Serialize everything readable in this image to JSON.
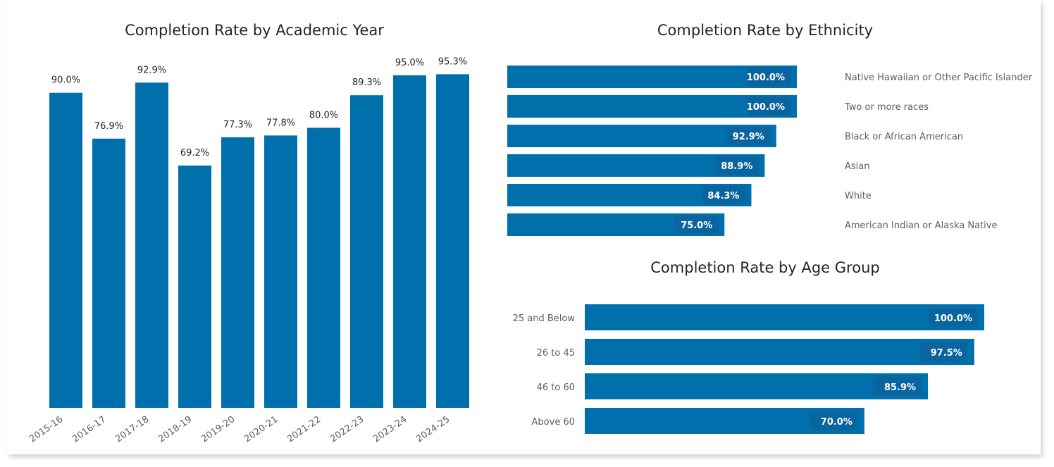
{
  "chart_data": [
    {
      "type": "bar",
      "title": "Completion Rate by Academic Year",
      "categories": [
        "2015-16",
        "2016-17",
        "2017-18",
        "2018-19",
        "2019-20",
        "2020-21",
        "2021-22",
        "2022-23",
        "2023-24",
        "2024-25"
      ],
      "values": [
        90.0,
        76.9,
        92.9,
        69.2,
        77.3,
        77.8,
        80.0,
        89.3,
        95.0,
        95.3
      ],
      "data_labels": [
        "90.0%",
        "76.9%",
        "92.9%",
        "69.2%",
        "77.3%",
        "77.8%",
        "80.0%",
        "89.3%",
        "95.0%",
        "95.3%"
      ],
      "ylim": [
        0,
        100
      ],
      "grid": false,
      "color": "#0070AD"
    },
    {
      "type": "bar",
      "orientation": "horizontal",
      "title": "Completion Rate by Ethnicity",
      "categories": [
        "Native Hawaiian or Other Pacific Islander",
        "Two or more races",
        "Black or African American",
        "Asian",
        "White",
        "American Indian or Alaska Native"
      ],
      "values": [
        100.0,
        100.0,
        92.9,
        88.9,
        84.3,
        75.0
      ],
      "data_labels": [
        "100.0%",
        "100.0%",
        "92.9%",
        "88.9%",
        "84.3%",
        "75.0%"
      ],
      "xlim": [
        0,
        100
      ],
      "color": "#0070AD"
    },
    {
      "type": "bar",
      "orientation": "horizontal",
      "title": "Completion Rate by Age Group",
      "categories": [
        "25 and Below",
        "26 to 45",
        "46 to 60",
        "Above 60"
      ],
      "values": [
        100.0,
        97.5,
        85.9,
        70.0
      ],
      "data_labels": [
        "100.0%",
        "97.5%",
        "85.9%",
        "70.0%"
      ],
      "xlim": [
        0,
        100
      ],
      "color": "#0070AD"
    }
  ]
}
